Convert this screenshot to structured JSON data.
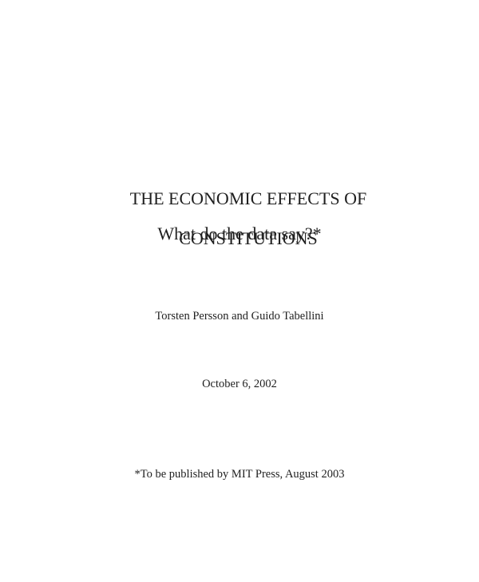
{
  "page": {
    "colors": {
      "background": "#ffffff",
      "text": "#1f1f1f"
    }
  },
  "document": {
    "title_lines": [
      "THE ECONOMIC EFFECTS OF",
      "CONSTITUTIONS"
    ],
    "subtitle": "What do the data say?*",
    "authors": "Torsten Persson and Guido Tabellini",
    "date": "October 6, 2002",
    "footnote": "*To be published by MIT Press, August 2003"
  }
}
